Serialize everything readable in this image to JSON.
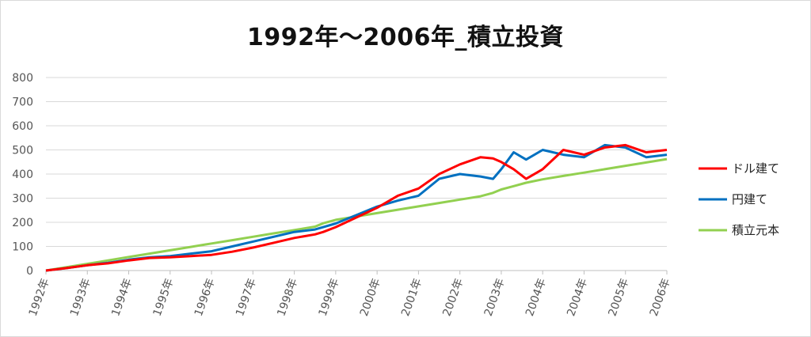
{
  "chart_data": {
    "type": "line",
    "title": "1992年～2006年_積立投資",
    "xlabel": "",
    "ylabel": "",
    "ylim": [
      0,
      800
    ],
    "yticks": [
      "0",
      "100",
      "200",
      "300",
      "400",
      "500",
      "600",
      "700",
      "800"
    ],
    "xticks": [
      "1992年",
      "1993年",
      "1994年",
      "1995年",
      "1996年",
      "1997年",
      "1998年",
      "1999年",
      "2000年",
      "2001年",
      "2002年",
      "2003年",
      "2004年",
      "2004年",
      "2005年",
      "2006年"
    ],
    "grid": true,
    "legend_position": "right",
    "x": [
      1992.0,
      1992.5,
      1993.0,
      1993.5,
      1994.0,
      1994.5,
      1995.0,
      1995.5,
      1996.0,
      1996.5,
      1997.0,
      1997.5,
      1998.0,
      1998.5,
      1998.7,
      1999.0,
      1999.5,
      2000.0,
      2000.5,
      2001.0,
      2001.5,
      2002.0,
      2002.5,
      2002.8,
      2003.0,
      2003.3,
      2003.6,
      2004.0,
      2004.5,
      2005.0,
      2005.5,
      2006.0,
      2006.5,
      2007.0
    ],
    "series": [
      {
        "name": "ドル建て",
        "color": "#ff0000",
        "values": [
          0,
          10,
          22,
          30,
          42,
          52,
          55,
          60,
          65,
          78,
          95,
          115,
          135,
          150,
          160,
          180,
          220,
          260,
          310,
          340,
          400,
          440,
          470,
          465,
          450,
          420,
          380,
          420,
          500,
          480,
          510,
          520,
          490,
          500
        ]
      },
      {
        "name": "円建て",
        "color": "#0070c0",
        "values": [
          0,
          10,
          22,
          32,
          45,
          55,
          60,
          70,
          80,
          100,
          120,
          140,
          160,
          170,
          180,
          195,
          230,
          265,
          290,
          310,
          380,
          400,
          390,
          380,
          420,
          490,
          460,
          500,
          480,
          470,
          520,
          510,
          470,
          480
        ]
      },
      {
        "name": "積立元本",
        "color": "#92d050",
        "values": [
          0,
          14,
          28,
          42,
          56,
          70,
          84,
          98,
          112,
          126,
          140,
          154,
          168,
          182,
          196,
          210,
          224,
          238,
          252,
          266,
          280,
          294,
          308,
          322,
          336,
          350,
          364,
          378,
          392,
          406,
          420,
          434,
          448,
          462
        ]
      }
    ]
  }
}
